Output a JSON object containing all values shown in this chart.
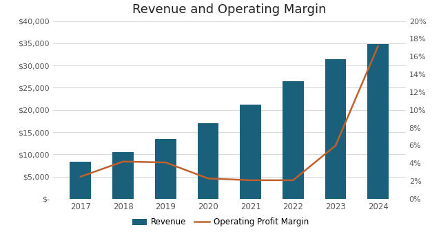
{
  "years": [
    "2017",
    "2018",
    "2019",
    "2020",
    "2021",
    "2022",
    "2023",
    "2024"
  ],
  "revenue": [
    8392,
    10540,
    13400,
    17098,
    21250,
    26490,
    31350,
    34860
  ],
  "op_margin": [
    2.5,
    4.2,
    4.1,
    2.3,
    2.1,
    2.1,
    6.0,
    17.2
  ],
  "bar_color": "#1a607a",
  "line_color": "#c0612b",
  "title": "Revenue and Operating Margin",
  "title_fontsize": 13,
  "ylim_left": [
    0,
    40000
  ],
  "ylim_right": [
    0,
    20
  ],
  "yticks_left": [
    0,
    5000,
    10000,
    15000,
    20000,
    25000,
    30000,
    35000,
    40000
  ],
  "yticks_right": [
    0,
    2,
    4,
    6,
    8,
    10,
    12,
    14,
    16,
    18,
    20
  ],
  "legend_labels": [
    "Revenue",
    "Operating Profit Margin"
  ]
}
